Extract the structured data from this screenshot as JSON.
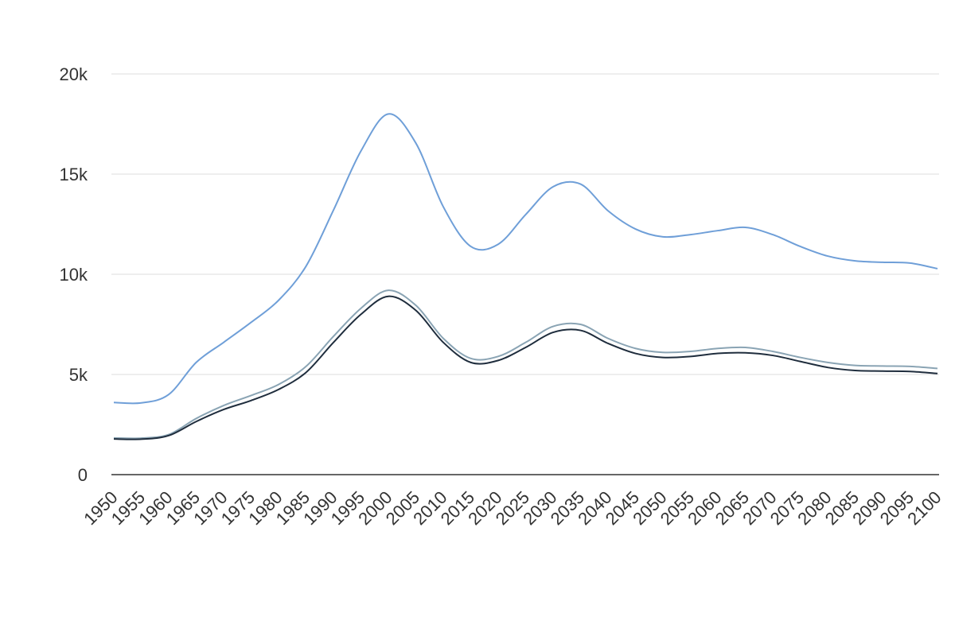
{
  "chart_data": {
    "type": "line",
    "x": [
      1950,
      1955,
      1960,
      1965,
      1970,
      1975,
      1980,
      1985,
      1990,
      1995,
      2000,
      2005,
      2010,
      2015,
      2020,
      2025,
      2030,
      2035,
      2040,
      2045,
      2050,
      2055,
      2060,
      2065,
      2070,
      2075,
      2080,
      2085,
      2090,
      2095,
      2100
    ],
    "xlim": [
      1950,
      2100
    ],
    "series": [
      {
        "color": "#6f9fd8",
        "values": [
          3600,
          3580,
          4000,
          5600,
          6600,
          7600,
          8700,
          10400,
          13200,
          16150,
          18000,
          16550,
          13370,
          11390,
          11500,
          12980,
          14370,
          14500,
          13170,
          12260,
          11870,
          11980,
          12180,
          12340,
          11980,
          11390,
          10910,
          10670,
          10600,
          10560,
          10280
        ]
      },
      {
        "color": "#8aa4b4",
        "values": [
          1830,
          1820,
          2000,
          2800,
          3450,
          3950,
          4500,
          5400,
          6900,
          8300,
          9200,
          8450,
          6800,
          5800,
          5900,
          6600,
          7400,
          7500,
          6800,
          6300,
          6100,
          6150,
          6300,
          6350,
          6150,
          5850,
          5600,
          5450,
          5420,
          5400,
          5300
        ]
      },
      {
        "color": "#1f2d3d",
        "values": [
          1780,
          1770,
          1950,
          2650,
          3250,
          3700,
          4250,
          5100,
          6600,
          8000,
          8900,
          8200,
          6600,
          5600,
          5700,
          6350,
          7100,
          7200,
          6550,
          6050,
          5850,
          5900,
          6050,
          6080,
          5950,
          5650,
          5350,
          5200,
          5170,
          5150,
          5050
        ]
      }
    ],
    "ylim": [
      0,
      20000
    ],
    "yticks": [
      0,
      {
        "value": 5000,
        "label": "5k"
      },
      {
        "value": 10000,
        "label": "10k"
      },
      {
        "value": 15000,
        "label": "15k"
      },
      {
        "value": 20000,
        "label": "20k"
      }
    ],
    "grid": true
  }
}
